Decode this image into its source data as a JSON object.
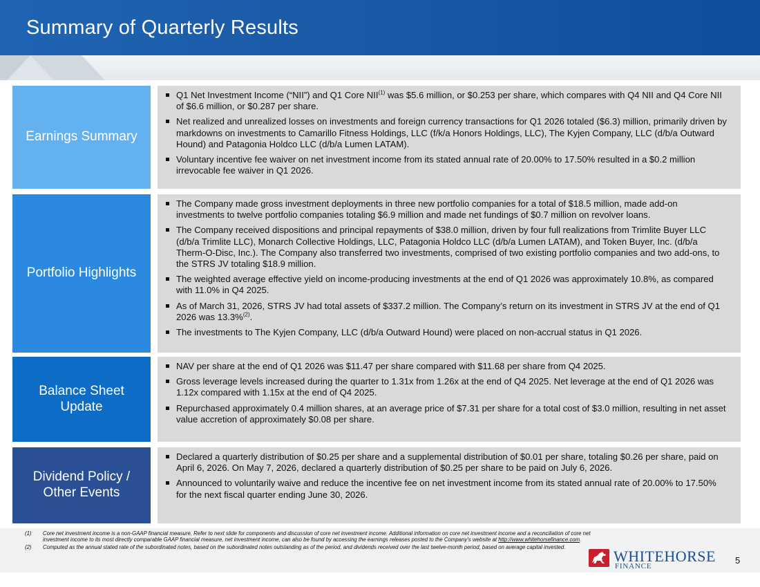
{
  "header": {
    "title": "Summary of Quarterly Results"
  },
  "sections": [
    {
      "label": "Earnings Summary",
      "bullets": [
        {
          "text_a": "Q1 Net Investment Income (“NII”) and Q1 Core NII",
          "sup": "(1)",
          "text_b": " was $5.6 million, or $0.253 per share, which compares with Q4 NII and Q4 Core NII of $6.6 million, or $0.287 per share."
        },
        {
          "text_a": "Net realized and unrealized losses on investments and foreign currency transactions for Q1 2026 totaled ($6.3) million, primarily driven by markdowns on investments to Camarillo Fitness Holdings, LLC (f/k/a Honors Holdings, LLC), The Kyjen Company, LLC (d/b/a Outward Hound) and Patagonia Holdco LLC (d/b/a Lumen LATAM).",
          "sup": "",
          "text_b": ""
        },
        {
          "text_a": "Voluntary incentive fee waiver on net investment income from its stated annual rate of 20.00% to 17.50% resulted in a $0.2 million irrevocable fee waiver in Q1 2026.",
          "sup": "",
          "text_b": ""
        }
      ]
    },
    {
      "label": "Portfolio Highlights",
      "bullets": [
        {
          "text_a": "The Company made gross investment deployments in three new portfolio companies for a total of $18.5 million, made add-on investments to twelve portfolio companies totaling $6.9 million and made net fundings of $0.7 million on revolver loans.",
          "sup": "",
          "text_b": ""
        },
        {
          "text_a": "The Company received dispositions and principal repayments of $38.0 million, driven by four full realizations from Trimlite Buyer LLC (d/b/a Trimlite LLC), Monarch Collective Holdings, LLC, Patagonia Holdco LLC (d/b/a Lumen LATAM), and Token Buyer, Inc. (d/b/a Therm-O-Disc, Inc.). The Company also transferred two investments, comprised of two existing portfolio companies and two add-ons, to the STRS JV totaling $18.9 million.",
          "sup": "",
          "text_b": ""
        },
        {
          "text_a": "The weighted average effective yield on income-producing investments at the end of Q1 2026 was approximately 10.8%, as compared with 11.0% in Q4 2025.",
          "sup": "",
          "text_b": ""
        },
        {
          "text_a": "As of March 31, 2026, STRS JV had total assets of $337.2 million. The Company’s return on its investment in STRS JV at the end of Q1 2026 was 13.3%",
          "sup": "(2)",
          "text_b": "."
        },
        {
          "text_a": "The investments to The Kyjen Company, LLC (d/b/a Outward Hound) were placed on non-accrual status in Q1 2026.",
          "sup": "",
          "text_b": ""
        }
      ]
    },
    {
      "label": "Balance Sheet Update",
      "bullets": [
        {
          "text_a": "NAV per share at the end of Q1 2026 was $11.47 per share compared with $11.68 per share from Q4 2025.",
          "sup": "",
          "text_b": ""
        },
        {
          "text_a": "Gross leverage levels increased during the quarter to 1.31x from 1.26x at the end of Q4 2025. Net leverage at the end of Q1 2026 was 1.12x compared with 1.15x at the end of Q4 2025.",
          "sup": "",
          "text_b": ""
        },
        {
          "text_a": "Repurchased approximately 0.4 million shares, at an average price of $7.31 per share for a total cost of $3.0 million, resulting in net asset value accretion of approximately $0.08 per share.",
          "sup": "",
          "text_b": ""
        }
      ]
    },
    {
      "label": "Dividend Policy / Other Events",
      "bullets": [
        {
          "text_a": "Declared a quarterly distribution of $0.25 per share and a supplemental distribution of $0.01 per share, totaling $0.26 per share, paid on April 6, 2026. On May 7, 2026, declared a quarterly distribution of $0.25 per share to be paid on July 6, 2026.",
          "sup": "",
          "text_b": ""
        },
        {
          "text_a": "Announced to voluntarily waive and reduce the incentive fee on net investment income from its stated annual rate of 20.00% to 17.50% for the next fiscal quarter ending June 30, 2026.",
          "sup": "",
          "text_b": ""
        }
      ]
    }
  ],
  "footnotes": [
    {
      "num": "(1)",
      "text": "Core net investment income is a non-GAAP financial measure. Refer to next slide for components and discussion of core net investment income. Additional information on core net investment income and a reconciliation of core net investment income to its most directly comparable GAAP financial measure, net investment income, can also be found by accessing the earnings releases posted to the Company’s website at ",
      "link": "http://www.whitehorsefinance.com",
      "tail": "."
    },
    {
      "num": "(2)",
      "text": "Computed as the annual stated rate of the subordinated notes, based on the subordinated notes outstanding as of the period, and dividends received over the last twelve-month period, based on average capital invested.",
      "link": "",
      "tail": ""
    }
  ],
  "logo": {
    "name": "WHITEHORSE",
    "sub": "FINANCE"
  },
  "page_number": "5",
  "colors": {
    "header": "#1a5aa6",
    "earnings": "#64b1f0",
    "portfolio": "#2b8ae0",
    "balance": "#0c6cc6",
    "dividend": "#2a4f94",
    "body": "#d9d9d9",
    "logo_red": "#c8202f"
  }
}
